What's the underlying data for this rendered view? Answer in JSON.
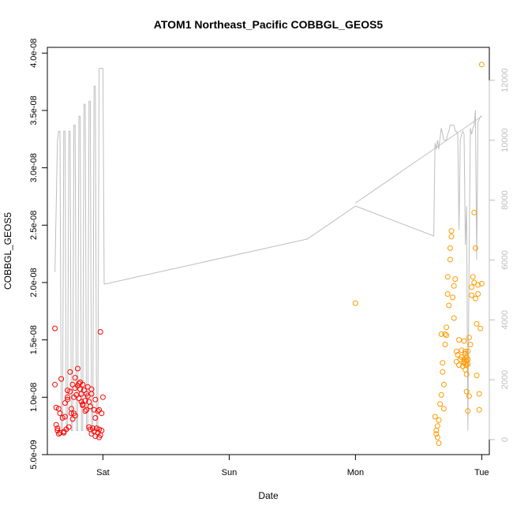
{
  "chart_data": {
    "type": "scatter",
    "title": "ATOM1 Northeast_Pacific COBBGL_GEOS5",
    "xlabel": "Date",
    "ylabel": "COBBGL_GEOS5",
    "x_ticks": [
      {
        "day": 1.0,
        "label": "Sat"
      },
      {
        "day": 2.0,
        "label": "Sun"
      },
      {
        "day": 3.0,
        "label": "Mon"
      },
      {
        "day": 4.0,
        "label": "Tue"
      }
    ],
    "xlim": [
      0.56,
      4.06
    ],
    "y_left": {
      "ylim": [
        5e-09,
        4.05e-08
      ],
      "ticks": [
        5e-09,
        1e-08,
        1.5e-08,
        2e-08,
        2.5e-08,
        3e-08,
        3.5e-08,
        4e-08
      ],
      "tick_labels": [
        "5.0e-09",
        "1.0e-08",
        "1.5e-08",
        "2.0e-08",
        "2.5e-08",
        "3.0e-08",
        "3.5e-08",
        "4.0e-08"
      ]
    },
    "y_right": {
      "ylim": [
        -500,
        13100
      ],
      "ticks": [
        0,
        2000,
        4000,
        6000,
        8000,
        10000,
        12000
      ],
      "tick_labels": [
        "0",
        "2000",
        "4000",
        "6000",
        "8000",
        "10000",
        "12000"
      ]
    },
    "colors": {
      "series_red": "#ff0000",
      "series_orange": "#ff9a00",
      "altitude": "#bebebe",
      "axis": "#000000"
    },
    "series": [
      {
        "color": "red",
        "x": [
          0.62,
          0.62,
          0.63,
          0.63,
          0.64,
          0.64,
          0.65,
          0.66,
          0.66,
          0.67,
          0.68,
          0.69,
          0.7,
          0.7,
          0.71,
          0.72,
          0.72,
          0.73,
          0.74,
          0.74,
          0.75,
          0.75,
          0.76,
          0.77,
          0.77,
          0.78,
          0.78,
          0.79,
          0.8,
          0.8,
          0.81,
          0.81,
          0.82,
          0.83,
          0.83,
          0.84,
          0.84,
          0.85,
          0.86,
          0.86,
          0.87,
          0.87,
          0.88,
          0.89,
          0.89,
          0.9,
          0.9,
          0.91,
          0.91,
          0.92,
          0.93,
          0.93,
          0.94,
          0.94,
          0.95,
          0.96,
          0.96,
          0.97,
          0.97,
          0.98,
          0.98,
          0.99,
          0.99,
          1.0,
          0.65,
          0.72,
          0.78,
          0.84,
          0.91,
          0.97,
          0.69,
          0.76,
          0.82,
          0.88,
          0.94
        ],
        "y": [
          1.6e-08,
          1.11e-08,
          9.1e-09,
          7.6e-09,
          7.3e-09,
          7.1e-09,
          9e-09,
          8.6e-09,
          6.9e-09,
          1.16e-08,
          8.2e-09,
          6.9e-09,
          9.5e-09,
          8.3e-09,
          7.2e-09,
          1.06e-08,
          9.8e-09,
          7.4e-09,
          1.22e-08,
          1.05e-08,
          9e-09,
          8.6e-09,
          1.11e-08,
          1e-08,
          8.6e-09,
          1.17e-08,
          1.08e-08,
          1.02e-08,
          1.25e-08,
          1.1e-08,
          9.9e-09,
          1.12e-08,
          1.07e-08,
          1.03e-08,
          9.6e-09,
          1.11e-08,
          9.3e-09,
          1.06e-08,
          9.7e-09,
          8.8e-09,
          1.03e-08,
          8.9e-09,
          1.09e-08,
          9.6e-09,
          7.4e-09,
          9.2e-09,
          7.2e-09,
          1.03e-08,
          6.8e-09,
          7.3e-09,
          8.9e-09,
          7e-09,
          9.8e-09,
          6.6e-09,
          7.3e-09,
          8.8e-09,
          6.9e-09,
          7.2e-09,
          6.5e-09,
          6.7e-09,
          1.57e-08,
          8.6e-09,
          7.1e-09,
          1e-08,
          6.8e-09,
          1e-08,
          8.4e-09,
          9.4e-09,
          1.07e-08,
          8.9e-09,
          7e-09,
          8.1e-09,
          1.13e-08,
          1.01e-08,
          8.2e-09
        ]
      },
      {
        "color": "orange",
        "x": [
          3.0,
          3.63,
          3.64,
          3.64,
          3.65,
          3.65,
          3.66,
          3.66,
          3.67,
          3.68,
          3.68,
          3.69,
          3.69,
          3.7,
          3.7,
          3.71,
          3.71,
          3.72,
          3.72,
          3.73,
          3.73,
          3.74,
          3.75,
          3.75,
          3.76,
          3.76,
          3.77,
          3.78,
          3.78,
          3.79,
          3.8,
          3.8,
          3.81,
          3.82,
          3.82,
          3.83,
          3.84,
          3.84,
          3.85,
          3.86,
          3.86,
          3.87,
          3.87,
          3.88,
          3.88,
          3.89,
          3.89,
          3.9,
          3.9,
          3.91,
          3.92,
          3.92,
          3.93,
          3.94,
          3.94,
          3.95,
          3.96,
          3.96,
          3.97,
          3.98,
          3.98,
          3.99,
          4.0,
          4.0,
          3.87,
          3.88,
          3.89,
          3.86,
          3.87,
          3.88,
          3.89,
          3.86,
          3.87,
          3.88,
          3.95,
          3.97
        ],
        "y": [
          1.82e-08,
          8.3e-09,
          7.1e-09,
          6.8e-09,
          7.5e-09,
          6.5e-09,
          6e-09,
          8e-09,
          9.4e-09,
          1.02e-08,
          1.55e-08,
          1.22e-08,
          1.3e-08,
          1.11e-08,
          9e-09,
          1.46e-08,
          1.55e-08,
          1.54e-08,
          1.61e-08,
          1.9e-08,
          2.05e-08,
          1.8e-08,
          2.2e-08,
          2.3e-08,
          2.45e-08,
          2.4e-08,
          1.87e-08,
          1.69e-08,
          1.97e-08,
          2.03e-08,
          1.4e-08,
          1.31e-08,
          1.37e-08,
          1.5e-08,
          1.28e-08,
          1.33e-08,
          1.41e-08,
          1.35e-08,
          1.27e-08,
          1.31e-08,
          1.49e-08,
          1.24e-08,
          1.4e-08,
          1.2e-08,
          1.05e-08,
          1.4e-08,
          8.8e-09,
          1.52e-08,
          1.01e-08,
          1.46e-08,
          1.96e-08,
          1.89e-08,
          2.05e-08,
          2.61e-08,
          2e-08,
          2.3e-08,
          1.64e-08,
          1.19e-08,
          1.9e-08,
          1.03e-08,
          8.9e-09,
          1.6e-08,
          1.99e-08,
          3.9e-08,
          1.38e-08,
          1.35e-08,
          1.33e-08,
          1.3e-08,
          1.38e-08,
          1.32e-08,
          1.29e-08,
          1.33e-08,
          1.29e-08,
          1.28e-08,
          1.86e-08,
          1.98e-08
        ]
      },
      {
        "name_in_image": "",
        "color": "grey",
        "axis": "right",
        "x": [
          0.62,
          0.64,
          0.65,
          0.66,
          0.67,
          0.68,
          0.69,
          0.7,
          0.71,
          0.72,
          0.73,
          0.74,
          0.75,
          0.76,
          0.77,
          0.78,
          0.79,
          0.8,
          0.81,
          0.82,
          0.83,
          0.84,
          0.85,
          0.86,
          0.87,
          0.88,
          0.89,
          0.9,
          0.91,
          0.92,
          0.93,
          0.94,
          0.95,
          0.96,
          0.97,
          0.98,
          0.99,
          1.0,
          1.01,
          1.02,
          2.62,
          3.0,
          3.62,
          3.63,
          3.64,
          3.65,
          3.66,
          3.67,
          3.68,
          3.69,
          3.7,
          3.71,
          3.72,
          3.73,
          3.74,
          3.75,
          3.76,
          3.77,
          3.78,
          3.79,
          3.8,
          3.81,
          3.82,
          3.83,
          3.84,
          3.85,
          3.86,
          3.87,
          3.88,
          3.89,
          3.9,
          3.91,
          3.92,
          3.93,
          3.94,
          3.95,
          3.96,
          3.97,
          3.98,
          3.99,
          4.0,
          3.0,
          4.0
        ],
        "y": [
          5600,
          10000,
          10300,
          10300,
          300,
          300,
          10300,
          10300,
          300,
          300,
          10300,
          10300,
          300,
          300,
          10500,
          10500,
          300,
          300,
          10800,
          10800,
          300,
          300,
          11200,
          11200,
          300,
          300,
          11300,
          11300,
          300,
          300,
          11800,
          11800,
          300,
          300,
          12400,
          12400,
          12400,
          12400,
          5200,
          5200,
          6700,
          7800,
          6800,
          9900,
          9700,
          10000,
          9700,
          10100,
          10400,
          10200,
          10000,
          10000,
          10000,
          10200,
          10300,
          10500,
          10500,
          10500,
          10500,
          10300,
          10300,
          10200,
          7000,
          10000,
          10200,
          10300,
          10200,
          6500,
          7800,
          300,
          6200,
          10400,
          10200,
          10400,
          10500,
          11000,
          6000,
          10600,
          10700,
          10800,
          10800,
          7900,
          10800
        ]
      }
    ]
  }
}
